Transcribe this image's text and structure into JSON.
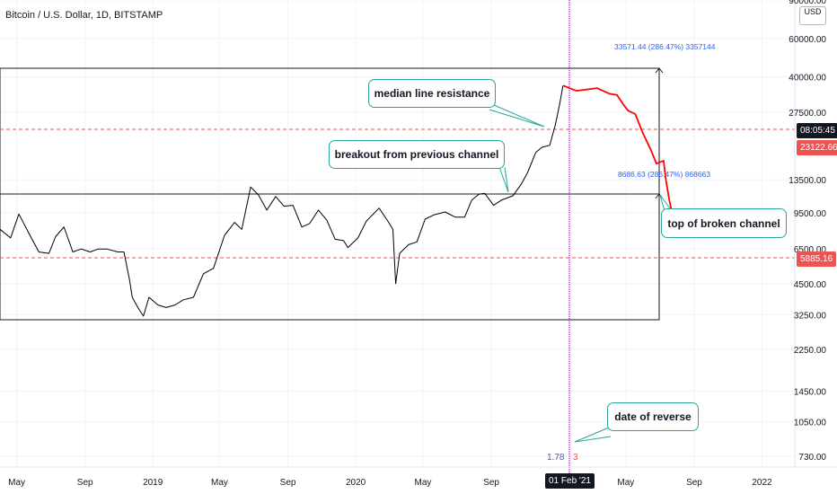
{
  "header": {
    "symbol_title": "Bitcoin / U.S. Dollar, 1D, BITSTAMP",
    "currency_button": "USD"
  },
  "annotations": {
    "median_line_resistance": "median line resistance",
    "breakout": "breakout from previous channel",
    "top_broken_channel": "top of broken channel",
    "date_of_reverse": "date of reverse",
    "measure_upper": "33571.44 (286.47%) 3357144",
    "measure_lower": "8686.63 (286.47%) 868663",
    "cycle_left": "1.78",
    "cycle_right": "3"
  },
  "price_badges": {
    "countdown": {
      "label": "08:05:45",
      "color": "#131722"
    },
    "current_price": {
      "label": "23122.66",
      "color": "#ef5350"
    },
    "support_price": {
      "label": "5885.16",
      "color": "#ef5350"
    }
  },
  "crosshair_date": {
    "label": "01 Feb '21",
    "color": "#131722"
  },
  "colors": {
    "price_line": "#000000",
    "projection_line": "#ff0000",
    "support_lines": "#ef5350",
    "vertical_line": "#9c27b0",
    "callout_border": "#26a69a",
    "measure_text": "#2962ff"
  },
  "chart_data": {
    "type": "line",
    "title": "Bitcoin / U.S. Dollar, 1D, BITSTAMP",
    "scale": "log",
    "ylim": [
      650,
      90000
    ],
    "xlim": [
      "2018-04-01",
      "2022-03-01"
    ],
    "y_ticks": [
      "90000.00",
      "60000.00",
      "40000.00",
      "27500.00",
      "13500.00",
      "9500.00",
      "6500.00",
      "4500.00",
      "3250.00",
      "2250.00",
      "1450.00",
      "1050.00",
      "730.00"
    ],
    "x_ticks": [
      {
        "label": "May",
        "date": "2018-05-01"
      },
      {
        "label": "Sep",
        "date": "2018-09-01"
      },
      {
        "label": "2019",
        "date": "2019-01-01"
      },
      {
        "label": "May",
        "date": "2019-05-01"
      },
      {
        "label": "Sep",
        "date": "2019-09-01"
      },
      {
        "label": "2020",
        "date": "2020-01-01"
      },
      {
        "label": "May",
        "date": "2020-05-01"
      },
      {
        "label": "Sep",
        "date": "2020-09-01"
      },
      {
        "label": "May",
        "date": "2021-05-01"
      },
      {
        "label": "Sep",
        "date": "2021-09-01"
      },
      {
        "label": "2022",
        "date": "2022-01-01"
      }
    ],
    "series": [
      {
        "x": [
          "2018-04-01",
          "2018-04-20",
          "2018-05-05",
          "2018-05-25",
          "2018-06-10",
          "2018-06-28",
          "2018-07-10",
          "2018-07-25",
          "2018-08-10",
          "2018-08-25",
          "2018-09-10",
          "2018-09-25",
          "2018-10-10",
          "2018-10-30",
          "2018-11-10",
          "2018-11-20",
          "2018-11-25",
          "2018-12-05",
          "2018-12-15",
          "2018-12-25",
          "2019-01-10",
          "2019-01-25",
          "2019-02-10",
          "2019-02-25",
          "2019-03-15",
          "2019-04-02",
          "2019-04-20",
          "2019-05-10",
          "2019-05-28",
          "2019-06-10",
          "2019-06-26",
          "2019-07-10",
          "2019-07-25",
          "2019-08-10",
          "2019-08-25",
          "2019-09-10",
          "2019-09-26",
          "2019-10-10",
          "2019-10-26",
          "2019-11-10",
          "2019-11-25",
          "2019-12-10",
          "2019-12-18",
          "2020-01-05",
          "2020-01-20",
          "2020-02-12",
          "2020-02-28",
          "2020-03-08",
          "2020-03-13",
          "2020-03-20",
          "2020-04-05",
          "2020-04-20",
          "2020-05-05",
          "2020-05-20",
          "2020-06-10",
          "2020-06-28",
          "2020-07-15",
          "2020-07-28",
          "2020-08-10",
          "2020-08-20",
          "2020-09-05",
          "2020-09-20",
          "2020-10-10",
          "2020-10-25",
          "2020-11-05",
          "2020-11-20",
          "2020-12-01",
          "2020-12-15",
          "2020-12-25",
          "2021-01-02",
          "2021-01-08"
        ],
        "values": [
          8000,
          7300,
          9400,
          7500,
          6300,
          6200,
          7400,
          8200,
          6300,
          6500,
          6300,
          6500,
          6500,
          6300,
          6300,
          4700,
          3900,
          3500,
          3200,
          3900,
          3600,
          3500,
          3600,
          3800,
          3900,
          5000,
          5300,
          7500,
          8600,
          8000,
          12500,
          11500,
          9800,
          11300,
          10200,
          10300,
          8200,
          8500,
          9800,
          8800,
          7200,
          7100,
          6600,
          7300,
          8700,
          10000,
          8700,
          8000,
          4500,
          6200,
          6800,
          7000,
          8900,
          9300,
          9600,
          9100,
          9100,
          10900,
          11600,
          11700,
          10300,
          10900,
          11400,
          12900,
          14500,
          18000,
          19000,
          19400,
          24000,
          30000,
          36500
        ]
      },
      {
        "x": [
          "2021-01-08",
          "2021-02-01",
          "2021-02-20",
          "2021-03-10",
          "2021-04-01",
          "2021-04-15",
          "2021-04-28",
          "2021-05-05",
          "2021-05-18",
          "2021-06-01",
          "2021-06-15",
          "2021-06-25",
          "2021-07-08",
          "2021-07-12",
          "2021-07-18",
          "2021-07-22",
          "2021-07-28"
        ],
        "values": [
          36500,
          34500,
          35000,
          35500,
          33500,
          33000,
          29500,
          28000,
          27000,
          22000,
          18500,
          16000,
          16500,
          13500,
          11000,
          9800,
          8500
        ]
      }
    ]
  }
}
